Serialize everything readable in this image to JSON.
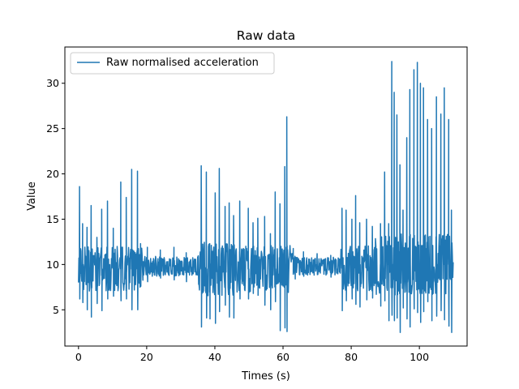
{
  "chart_data": {
    "type": "line",
    "title": "Raw data",
    "xlabel": "Times (s)",
    "ylabel": "Value",
    "xlim": [
      -4,
      114
    ],
    "ylim": [
      1.0,
      34.0
    ],
    "xticks": [
      0,
      20,
      40,
      60,
      80,
      100
    ],
    "yticks": [
      5,
      10,
      15,
      20,
      25,
      30
    ],
    "legend_position": "upper-left",
    "grid": false,
    "series": [
      {
        "name": "Raw normalised acceleration",
        "color": "#1f77b4",
        "segments": [
          {
            "range": [
              0,
              1.5
            ],
            "mean": 10.0,
            "amp": 2.0,
            "spikes": [
              [
                0.3,
                18.6,
                6.2
              ],
              [
                1.2,
                14.5,
                5.8
              ]
            ]
          },
          {
            "range": [
              1.5,
              19
            ],
            "mean": 9.5,
            "amp": 2.5,
            "spikes": [
              [
                2.5,
                14.1,
                5.0
              ],
              [
                3.7,
                16.5,
                4.2
              ],
              [
                5.4,
                13.0,
                5.7
              ],
              [
                6.8,
                16.1,
                4.9
              ],
              [
                8.5,
                17.0,
                6.2
              ],
              [
                10.2,
                14.0,
                6.5
              ],
              [
                12.4,
                19.1,
                6.0
              ],
              [
                14.0,
                17.4,
                6.2
              ],
              [
                15.6,
                20.5,
                5.0
              ],
              [
                17.3,
                20.3,
                5.0
              ],
              [
                18.2,
                12.3,
                7.6
              ]
            ]
          },
          {
            "range": [
              19,
              35
            ],
            "mean": 9.8,
            "amp": 1.1,
            "spikes": [
              [
                20.2,
                11.9,
                8.1
              ],
              [
                24.0,
                11.6,
                8.5
              ],
              [
                28.0,
                11.9,
                8.3
              ],
              [
                31.6,
                11.3,
                8.1
              ]
            ]
          },
          {
            "range": [
              35,
              48
            ],
            "mean": 9.5,
            "amp": 3.0,
            "spikes": [
              [
                36.0,
                20.9,
                3.1
              ],
              [
                37.5,
                20.2,
                4.1
              ],
              [
                38.5,
                12.3,
                4.0
              ],
              [
                40.1,
                17.9,
                3.5
              ],
              [
                41.3,
                20.6,
                4.8
              ],
              [
                43.0,
                16.4,
                5.5
              ],
              [
                44.2,
                16.8,
                4.2
              ],
              [
                45.5,
                15.4,
                4.1
              ],
              [
                47.3,
                17.0,
                6.2
              ]
            ]
          },
          {
            "range": [
              48,
              63
            ],
            "mean": 9.5,
            "amp": 2.6,
            "spikes": [
              [
                49.8,
                16.2,
                6.2
              ],
              [
                51.2,
                14.6,
                6.8
              ],
              [
                52.6,
                15.1,
                6.6
              ],
              [
                54.6,
                15.3,
                5.5
              ],
              [
                56.3,
                13.4,
                5.0
              ],
              [
                57.7,
                18.0,
                5.9
              ],
              [
                59.1,
                16.7,
                2.7
              ],
              [
                60.5,
                20.8,
                3.0
              ],
              [
                61.1,
                26.3,
                2.6
              ]
            ]
          },
          {
            "range": [
              63,
              77
            ],
            "mean": 9.8,
            "amp": 1.0,
            "spikes": [
              [
                63.5,
                10.9,
                8.4
              ],
              [
                66.0,
                11.4,
                8.7
              ],
              [
                70.0,
                11.2,
                8.9
              ],
              [
                74.0,
                11.0,
                8.6
              ]
            ]
          },
          {
            "range": [
              77,
              87
            ],
            "mean": 9.6,
            "amp": 2.5,
            "spikes": [
              [
                77.3,
                16.2,
                4.9
              ],
              [
                78.5,
                16.0,
                6.0
              ],
              [
                80.2,
                15.0,
                6.2
              ],
              [
                81.3,
                17.6,
                5.6
              ],
              [
                82.5,
                14.6,
                5.3
              ],
              [
                84.5,
                15.0,
                6.1
              ],
              [
                86.2,
                14.2,
                6.3
              ]
            ]
          },
          {
            "range": [
              87,
              110
            ],
            "mean": 10.0,
            "amp": 3.4,
            "spikes": [
              [
                88.6,
                14.5,
                5.4
              ],
              [
                89.8,
                20.2,
                6.0
              ],
              [
                91.0,
                14.5,
                3.8
              ],
              [
                91.9,
                32.4,
                4.4
              ],
              [
                92.6,
                29.0,
                3.8
              ],
              [
                93.4,
                26.5,
                4.1
              ],
              [
                94.3,
                21.0,
                2.5
              ],
              [
                95.2,
                16.0,
                5.2
              ],
              [
                96.3,
                24.0,
                4.0
              ],
              [
                97.2,
                29.3,
                3.1
              ],
              [
                98.4,
                31.5,
                5.1
              ],
              [
                99.4,
                32.3,
                4.7
              ],
              [
                100.3,
                30.0,
                3.6
              ],
              [
                101.2,
                29.5,
                4.8
              ],
              [
                102.4,
                26.0,
                5.9
              ],
              [
                103.6,
                25.0,
                3.8
              ],
              [
                105.0,
                28.5,
                4.3
              ],
              [
                106.3,
                26.6,
                4.9
              ],
              [
                107.3,
                29.5,
                3.9
              ],
              [
                108.6,
                26.0,
                3.2
              ],
              [
                109.4,
                16.0,
                2.5
              ]
            ]
          }
        ]
      }
    ]
  }
}
